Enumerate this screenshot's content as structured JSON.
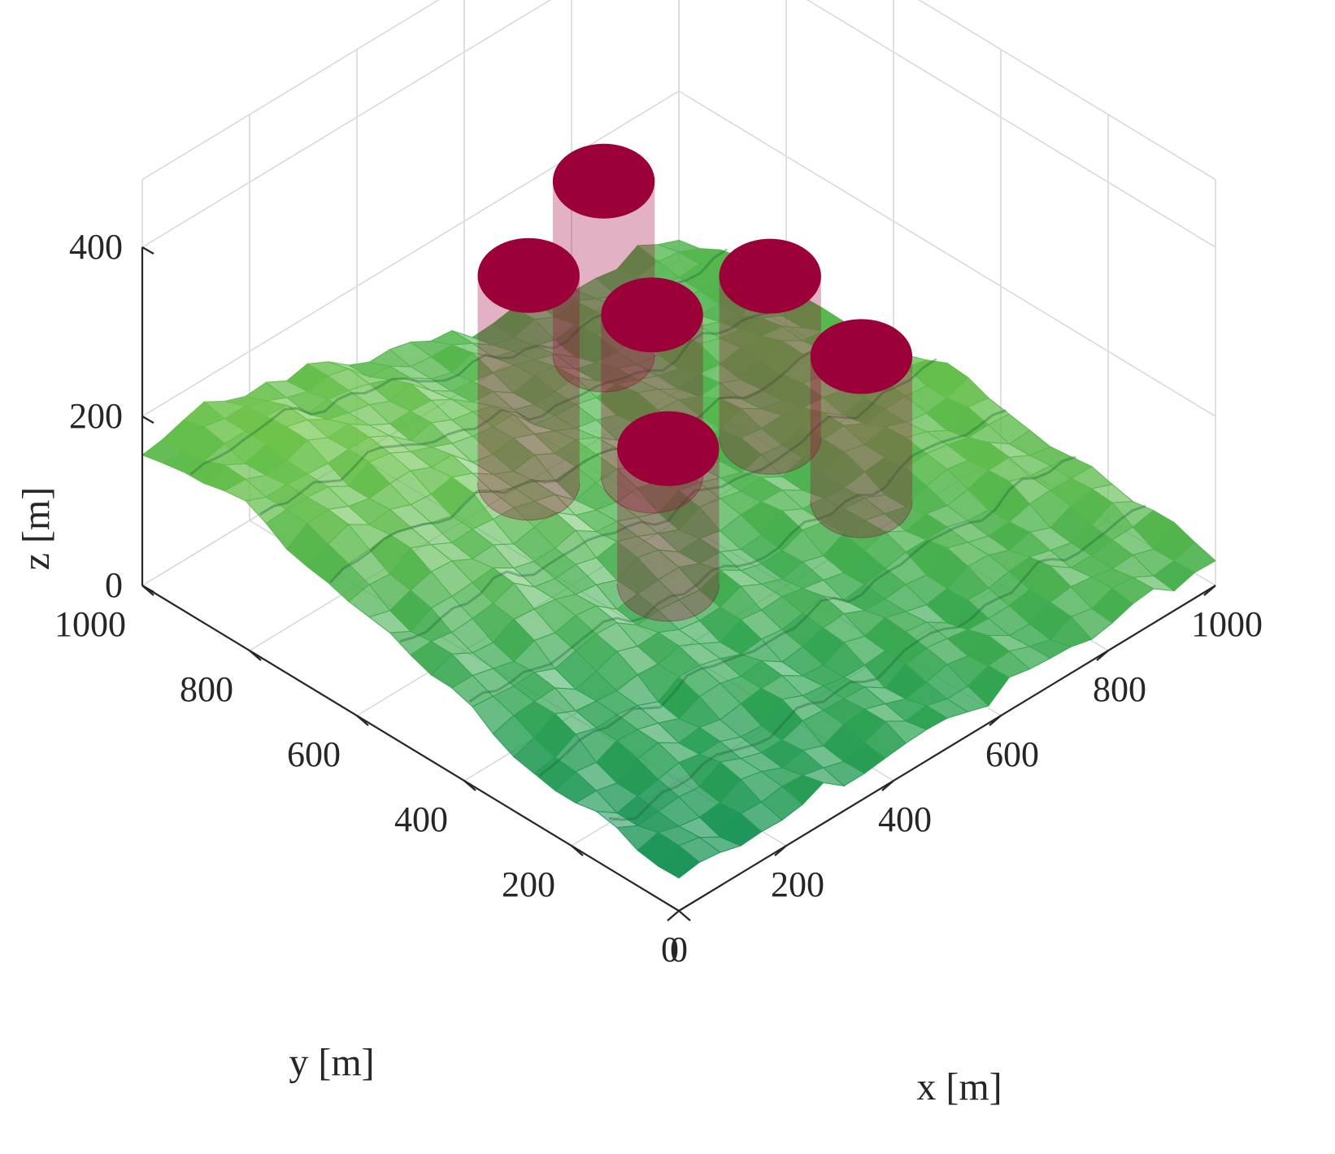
{
  "chart_data": {
    "type": "surface3d",
    "xlabel": "x [m]",
    "ylabel": "y [m]",
    "zlabel": "z [m]",
    "xlim": [
      0,
      1000
    ],
    "ylim": [
      0,
      1000
    ],
    "zlim": [
      0,
      400
    ],
    "x_ticks": [
      "0",
      "200",
      "400",
      "600",
      "800",
      "1000"
    ],
    "y_ticks": [
      "0",
      "200",
      "400",
      "600",
      "800",
      "1000"
    ],
    "z_ticks": [
      "0",
      "200",
      "400"
    ],
    "grid": true,
    "surface_colors": [
      "#0f8a62",
      "#2fa352",
      "#6cc24a",
      "#c6e85a"
    ],
    "cylinder_color": "#9b0038",
    "cylinders": [
      {
        "x": 440,
        "y": 720,
        "z_bottom": 60,
        "z_top": 305
      },
      {
        "x": 590,
        "y": 730,
        "z_bottom": 150,
        "z_top": 355
      },
      {
        "x": 540,
        "y": 590,
        "z_bottom": 80,
        "z_top": 270
      },
      {
        "x": 690,
        "y": 520,
        "z_bottom": 95,
        "z_top": 285
      },
      {
        "x": 460,
        "y": 480,
        "z_bottom": 25,
        "z_top": 185
      },
      {
        "x": 710,
        "y": 370,
        "z_bottom": 70,
        "z_top": 240
      }
    ]
  }
}
